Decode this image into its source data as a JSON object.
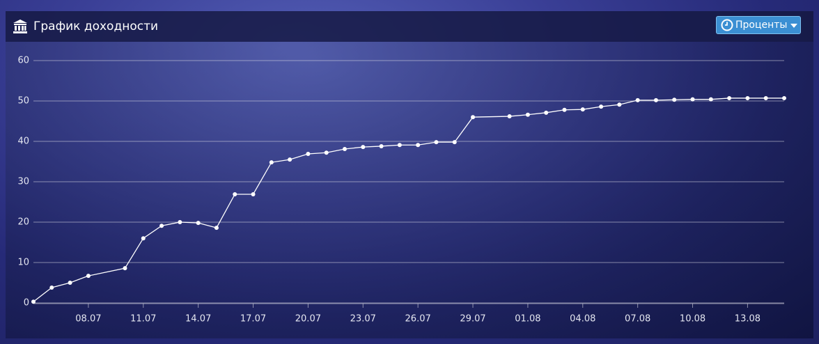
{
  "header": {
    "title": "График доходности",
    "button": "Проценты"
  },
  "chart_data": {
    "type": "line",
    "color": "#ffffff",
    "grid": true,
    "x": [
      "05.07",
      "06.07",
      "07.07",
      "08.07",
      "10.07",
      "11.07",
      "12.07",
      "13.07",
      "14.07",
      "15.07",
      "16.07",
      "17.07",
      "18.07",
      "19.07",
      "20.07",
      "21.07",
      "22.07",
      "23.07",
      "24.07",
      "25.07",
      "26.07",
      "27.07",
      "28.07",
      "29.07",
      "31.07",
      "01.08",
      "02.08",
      "03.08",
      "04.08",
      "05.08",
      "06.08",
      "07.08",
      "08.08",
      "09.08",
      "10.08",
      "11.08",
      "12.08",
      "13.08",
      "14.08",
      "15.08"
    ],
    "values": [
      0.3,
      3.8,
      5.0,
      6.7,
      8.6,
      16.0,
      19.1,
      20.0,
      19.8,
      18.6,
      26.9,
      26.9,
      34.8,
      35.5,
      36.9,
      37.2,
      38.1,
      38.6,
      38.8,
      39.1,
      39.1,
      39.8,
      39.8,
      46.0,
      46.2,
      46.6,
      47.1,
      47.8,
      47.9,
      48.6,
      49.1,
      50.2,
      50.2,
      50.3,
      50.4,
      50.4,
      50.7,
      50.7,
      50.7,
      50.7
    ],
    "xlim": [
      "05.07",
      "15.08"
    ],
    "xticks": [
      "08.07",
      "11.07",
      "14.07",
      "17.07",
      "20.07",
      "23.07",
      "26.07",
      "29.07",
      "01.08",
      "04.08",
      "07.08",
      "10.08",
      "13.08"
    ],
    "ylim": [
      0,
      60
    ],
    "yticks": [
      0,
      10,
      20,
      30,
      40,
      50,
      60
    ]
  }
}
